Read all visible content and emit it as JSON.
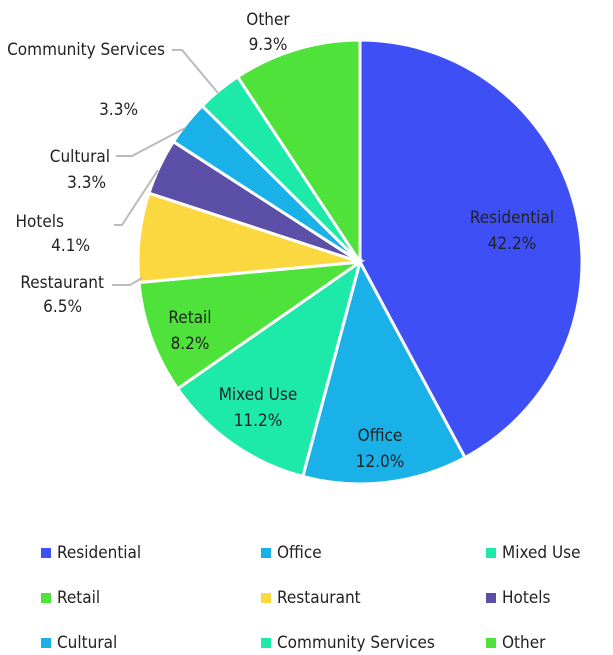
{
  "chart_data": {
    "type": "pie",
    "categories": [
      "Residential",
      "Office",
      "Mixed Use",
      "Retail",
      "Restaurant",
      "Hotels",
      "Cultural",
      "Community Services",
      "Other"
    ],
    "values": [
      42.2,
      12.0,
      11.2,
      8.2,
      6.5,
      4.1,
      3.3,
      3.3,
      9.3
    ],
    "value_labels": [
      "42.2%",
      "12.0%",
      "11.2%",
      "8.2%",
      "6.5%",
      "4.1%",
      "3.3%",
      "3.3%",
      "9.3%"
    ],
    "colors": [
      "#3d4ff5",
      "#1ab0e8",
      "#1de9a8",
      "#4ee23a",
      "#fcd840",
      "#5b4fa8",
      "#1ab0e8",
      "#1de9a8",
      "#4ee23a"
    ],
    "legend": "bottom"
  }
}
